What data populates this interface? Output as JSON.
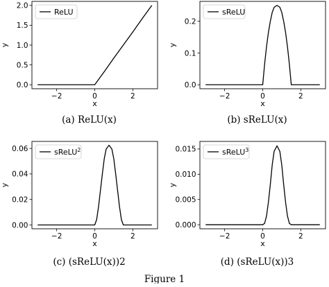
{
  "figure_label": "Figure 1",
  "chart_data": [
    {
      "type": "line",
      "panel": "a",
      "caption": "(a) ReLU(x)",
      "legend": "ReLU",
      "legend_sup": "",
      "xlabel": "x",
      "ylabel": "y",
      "xlim": [
        -3.3,
        3.3
      ],
      "ylim": [
        -0.1,
        2.1
      ],
      "xticks": [
        -2,
        0,
        2
      ],
      "xtick_labels": [
        "−2",
        "0",
        "2"
      ],
      "yticks": [
        0.0,
        0.5,
        1.0,
        1.5,
        2.0
      ],
      "ytick_labels": [
        "0.0",
        "0.5",
        "1.0",
        "1.5",
        "2.0"
      ],
      "legend_position": "top-left",
      "grid": false,
      "series": [
        {
          "x": [
            -3,
            0,
            0.5,
            1,
            1.5,
            2,
            2.5,
            3
          ],
          "y": [
            0,
            0,
            0.33,
            0.67,
            1.0,
            1.33,
            1.67,
            2.0
          ]
        }
      ]
    },
    {
      "type": "line",
      "panel": "b",
      "caption": "(b) sReLU(x)",
      "legend": "sReLU",
      "legend_sup": "",
      "xlabel": "x",
      "ylabel": "y",
      "xlim": [
        -3.3,
        3.3
      ],
      "ylim": [
        -0.0125,
        0.2625
      ],
      "xticks": [
        -2,
        0,
        2
      ],
      "xtick_labels": [
        "−2",
        "0",
        "2"
      ],
      "yticks": [
        0.0,
        0.1,
        0.2
      ],
      "ytick_labels": [
        "0.0",
        "0.1",
        "0.2"
      ],
      "legend_position": "top-left",
      "grid": false,
      "series": [
        {
          "x": [
            -3,
            0,
            0.1,
            0.2,
            0.3,
            0.4,
            0.5,
            0.6,
            0.75,
            0.9,
            1.0,
            1.1,
            1.2,
            1.3,
            1.4,
            1.5,
            3
          ],
          "y": [
            0,
            0,
            0.065,
            0.12,
            0.165,
            0.2,
            0.228,
            0.244,
            0.25,
            0.244,
            0.228,
            0.2,
            0.165,
            0.12,
            0.065,
            0,
            0
          ]
        }
      ]
    },
    {
      "type": "line",
      "panel": "c",
      "caption": "(c) (sReLU(x))2",
      "legend": "sReLU",
      "legend_sup": "2",
      "xlabel": "x",
      "ylabel": "y",
      "xlim": [
        -3.3,
        3.3
      ],
      "ylim": [
        -0.003,
        0.0655
      ],
      "xticks": [
        -2,
        0,
        2
      ],
      "xtick_labels": [
        "−2",
        "0",
        "2"
      ],
      "yticks": [
        0.0,
        0.02,
        0.04,
        0.06
      ],
      "ytick_labels": [
        "0.00",
        "0.02",
        "0.04",
        "0.06"
      ],
      "legend_position": "top-left",
      "grid": false,
      "series": [
        {
          "x": [
            -3,
            0,
            0.1,
            0.2,
            0.3,
            0.4,
            0.5,
            0.6,
            0.75,
            0.9,
            1.0,
            1.1,
            1.2,
            1.3,
            1.4,
            1.5,
            3
          ],
          "y": [
            0,
            0,
            0.0042,
            0.0144,
            0.0272,
            0.04,
            0.052,
            0.0595,
            0.0625,
            0.0595,
            0.052,
            0.04,
            0.0272,
            0.0144,
            0.0042,
            0,
            0
          ]
        }
      ]
    },
    {
      "type": "line",
      "panel": "d",
      "caption": "(d) (sReLU(x))3",
      "legend": "sReLU",
      "legend_sup": "3",
      "xlabel": "x",
      "ylabel": "y",
      "xlim": [
        -3.3,
        3.3
      ],
      "ylim": [
        -0.0008,
        0.0165
      ],
      "xticks": [
        -2,
        0,
        2
      ],
      "xtick_labels": [
        "−2",
        "0",
        "2"
      ],
      "yticks": [
        0.0,
        0.005,
        0.01,
        0.015
      ],
      "ytick_labels": [
        "0.000",
        "0.005",
        "0.010",
        "0.015"
      ],
      "legend_position": "top-left",
      "grid": false,
      "series": [
        {
          "x": [
            -3,
            0,
            0.1,
            0.2,
            0.3,
            0.4,
            0.5,
            0.6,
            0.75,
            0.9,
            1.0,
            1.1,
            1.2,
            1.3,
            1.4,
            1.5,
            3
          ],
          "y": [
            0,
            0,
            0.00027,
            0.00173,
            0.00449,
            0.008,
            0.01187,
            0.01453,
            0.015625,
            0.01453,
            0.01187,
            0.008,
            0.00449,
            0.00173,
            0.00027,
            0,
            0
          ]
        }
      ]
    }
  ]
}
